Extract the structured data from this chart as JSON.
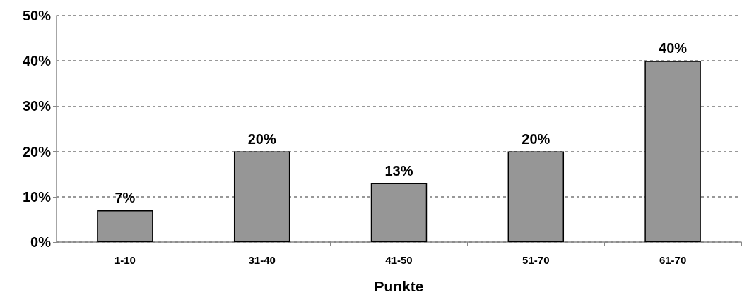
{
  "chart_data": {
    "type": "bar",
    "xlabel": "Punkte",
    "categories": [
      "1-10",
      "31-40",
      "41-50",
      "51-70",
      "61-70"
    ],
    "values": [
      7,
      20,
      13,
      20,
      40
    ],
    "value_labels": [
      "7%",
      "20%",
      "13%",
      "20%",
      "40%"
    ],
    "color": "#969696",
    "ylim": [
      0,
      50
    ],
    "yticks": [
      {
        "value": 0,
        "label": "0%"
      },
      {
        "value": 10,
        "label": "10%"
      },
      {
        "value": 20,
        "label": "20%"
      },
      {
        "value": 30,
        "label": "30%"
      },
      {
        "value": 40,
        "label": "40%"
      },
      {
        "value": 50,
        "label": "50%"
      }
    ],
    "grid": "y"
  }
}
